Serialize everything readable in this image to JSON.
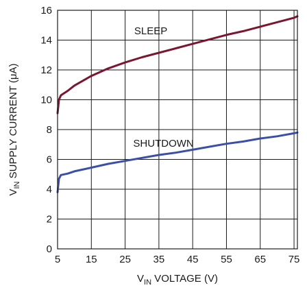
{
  "chart_data": {
    "type": "line",
    "xlabel": {
      "main": "V",
      "sub": "IN",
      "rest": " VOLTAGE (V)"
    },
    "ylabel": {
      "main": "V",
      "sub": "IN",
      "rest": " SUPPLY CURRENT (μA)"
    },
    "xlim": [
      5,
      76
    ],
    "ylim": [
      0,
      16
    ],
    "x_ticks": [
      5,
      15,
      25,
      35,
      45,
      55,
      65,
      75
    ],
    "y_ticks": [
      0,
      2,
      4,
      6,
      8,
      10,
      12,
      14,
      16
    ],
    "grid": true,
    "series": [
      {
        "name": "SLEEP",
        "color": "#7b1530",
        "x": [
          5,
          5.4,
          6,
          8,
          10,
          15,
          20,
          25,
          30,
          35,
          40,
          45,
          50,
          55,
          60,
          65,
          70,
          75,
          76
        ],
        "y": [
          9.1,
          10.0,
          10.3,
          10.6,
          10.95,
          11.6,
          12.1,
          12.5,
          12.85,
          13.15,
          13.45,
          13.75,
          14.05,
          14.35,
          14.6,
          14.9,
          15.2,
          15.5,
          15.6
        ]
      },
      {
        "name": "SHUTDOWN",
        "color": "#3a4fa8",
        "x": [
          5,
          5.4,
          6,
          8,
          10,
          15,
          20,
          25,
          30,
          35,
          40,
          45,
          50,
          55,
          60,
          65,
          70,
          75,
          76
        ],
        "y": [
          3.8,
          4.7,
          4.95,
          5.05,
          5.2,
          5.45,
          5.7,
          5.9,
          6.1,
          6.3,
          6.45,
          6.65,
          6.85,
          7.05,
          7.2,
          7.4,
          7.55,
          7.75,
          7.8
        ]
      }
    ]
  }
}
